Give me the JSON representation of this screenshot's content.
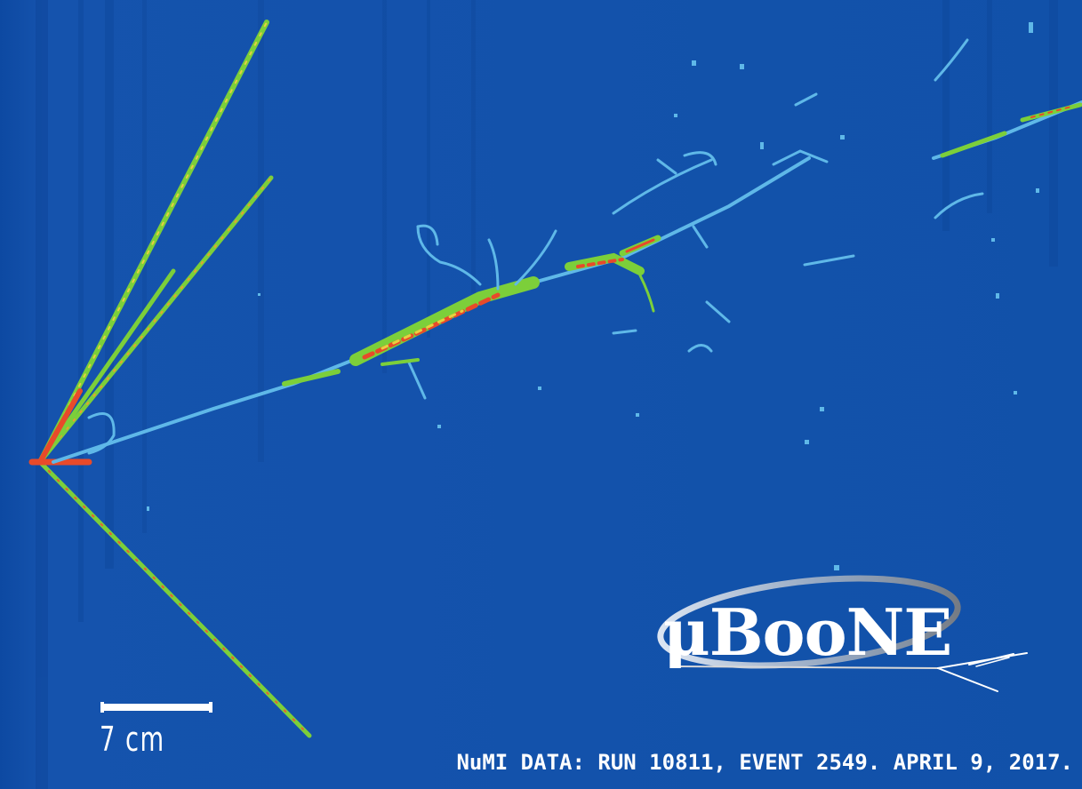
{
  "scale_bar": {
    "label": "7 cm"
  },
  "caption": {
    "text": "NuMI DATA: RUN 10811, EVENT 2549. APRIL 9, 2017."
  },
  "logo": {
    "text": "μBooNE"
  },
  "colors": {
    "background": "#1150a8",
    "track_low": "#5fb8e8",
    "track_mid": "#7ccf3a",
    "track_high": "#e84a2a",
    "text": "#ffffff"
  }
}
